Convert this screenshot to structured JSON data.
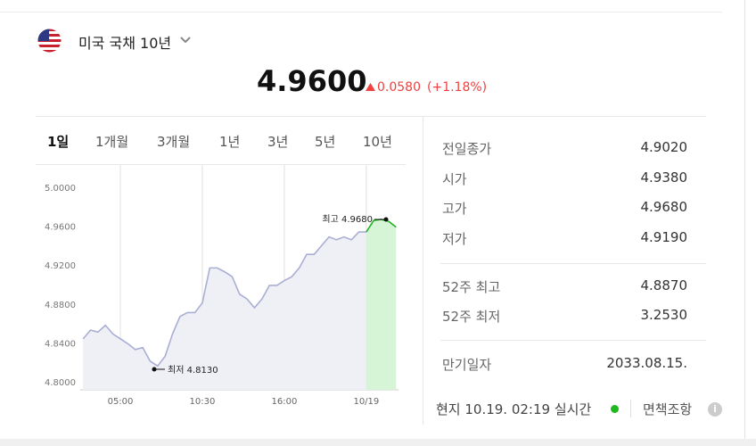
{
  "header": {
    "title": "미국 국채 10년"
  },
  "quote": {
    "price": "4.9600",
    "change": "0.0580",
    "change_pct": "(+1.18%)"
  },
  "tabs": [
    "1일",
    "1개월",
    "3개월",
    "1년",
    "3년",
    "5년",
    "10년"
  ],
  "stats": {
    "rows": [
      [
        "전일종가",
        "4.9020"
      ],
      [
        "시가",
        "4.9380"
      ],
      [
        "고가",
        "4.9680"
      ],
      [
        "저가",
        "4.9190"
      ],
      [
        "52주 최고",
        "4.8870"
      ],
      [
        "52주 최저",
        "3.2530"
      ],
      [
        "만기일자",
        "2033.08.15."
      ]
    ]
  },
  "footer": {
    "time": "현지 10.19. 02:19 실시간",
    "disclaimer": "면책조항"
  },
  "chart_data": {
    "type": "line",
    "categories": [
      null,
      null,
      null,
      null,
      null,
      "05:00",
      null,
      null,
      null,
      null,
      null,
      null,
      null,
      null,
      null,
      null,
      "10:30",
      null,
      null,
      null,
      null,
      null,
      null,
      null,
      null,
      null,
      null,
      "16:00",
      null,
      null,
      null,
      null,
      null,
      null,
      null,
      null,
      null,
      null,
      "10/19",
      null,
      null,
      null,
      null
    ],
    "series": [
      {
        "color": "#a9aed3",
        "fill": "#eff0f6",
        "values": [
          4.845,
          4.854,
          4.852,
          4.859,
          4.85,
          4.845,
          4.84,
          4.834,
          4.836,
          4.822,
          4.817,
          4.827,
          4.85,
          4.868,
          4.872,
          4.872,
          4.882,
          4.918,
          4.918,
          4.914,
          4.909,
          4.891,
          4.886,
          4.877,
          4.886,
          4.9,
          4.9,
          4.905,
          4.909,
          4.918,
          4.932,
          4.932,
          4.941,
          4.95,
          4.947,
          4.95,
          4.947,
          4.955,
          4.955,
          null,
          null,
          null,
          null
        ]
      },
      {
        "color": "#22b322",
        "fill": "#d6f5d6",
        "values": [
          null,
          null,
          null,
          null,
          null,
          null,
          null,
          null,
          null,
          null,
          null,
          null,
          null,
          null,
          null,
          null,
          null,
          null,
          null,
          null,
          null,
          null,
          null,
          null,
          null,
          null,
          null,
          null,
          null,
          null,
          null,
          null,
          null,
          null,
          null,
          null,
          null,
          null,
          4.955,
          4.967,
          4.968,
          4.966,
          4.96
        ]
      }
    ],
    "ylim": [
      4.7925,
      5.024
    ],
    "yticks": [
      {
        "value": 4.8,
        "label": "4.8000"
      },
      {
        "value": 4.84,
        "label": "4.8400"
      },
      {
        "value": 4.88,
        "label": "4.8800"
      },
      {
        "value": 4.92,
        "label": "4.9200"
      },
      {
        "value": 4.96,
        "label": "4.9600"
      },
      {
        "value": 5,
        "label": "5.0000"
      }
    ],
    "grid": "x",
    "annotations": [
      "최고 4.9680",
      "최저 4.8130"
    ]
  }
}
